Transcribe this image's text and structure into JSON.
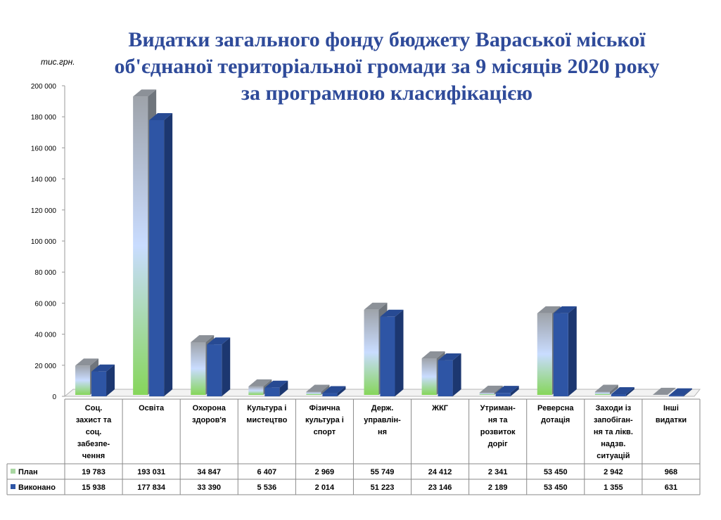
{
  "chart_data": {
    "type": "bar",
    "title_lines": [
      "Видатки загального фонду бюджету Вараської міської",
      "об'єднаної територіальної громади за 9 місяців 2020 року",
      "за програмною класифікацією"
    ],
    "y_unit": "тис.грн.",
    "ylim": [
      0,
      200000
    ],
    "y_ticks": [
      "0",
      "20 000",
      "40 000",
      "60 000",
      "80 000",
      "100 000",
      "120 000",
      "140 000",
      "160 000",
      "180 000",
      "200 000"
    ],
    "categories": [
      [
        "Соц.",
        "захист та",
        "соц.",
        "забезпе-",
        "чення"
      ],
      [
        "Освіта"
      ],
      [
        "Охорона",
        "здоров'я"
      ],
      [
        "Культура і",
        "мистецтво"
      ],
      [
        "Фізична",
        "культура і",
        "спорт"
      ],
      [
        "Держ.",
        "управлін-",
        "ня"
      ],
      [
        "ЖКГ"
      ],
      [
        "Утриман-",
        "ня та",
        "розвиток",
        "доріг"
      ],
      [
        "Реверсна",
        "дотація"
      ],
      [
        "Заходи із",
        "запобіган-",
        "ня та лікв.",
        "надзв.",
        "ситуацій"
      ],
      [
        "Інші",
        "видатки"
      ]
    ],
    "series": [
      {
        "name": "План",
        "values": [
          19783,
          193031,
          34847,
          6407,
          2969,
          55749,
          24412,
          2341,
          53450,
          2942,
          968
        ],
        "labels": [
          "19 783",
          "193 031",
          "34 847",
          "6 407",
          "2 969",
          "55 749",
          "24 412",
          "2 341",
          "53 450",
          "2 942",
          "968"
        ]
      },
      {
        "name": "Виконано",
        "values": [
          15938,
          177834,
          33390,
          5536,
          2014,
          51223,
          23146,
          2189,
          53450,
          1355,
          631
        ],
        "labels": [
          "15 938",
          "177 834",
          "33 390",
          "5 536",
          "2 014",
          "51 223",
          "23 146",
          "2 189",
          "53 450",
          "1 355",
          "631"
        ]
      }
    ],
    "colors": {
      "plan_top": "#9ea3aa",
      "plan_mid": "#c9dcff",
      "plan_bottom": "#86d65a",
      "done": "#2e55a5",
      "done_dark": "#203f80",
      "title": "#2f4b9a"
    },
    "legend_placement": "data table",
    "grid": false
  }
}
